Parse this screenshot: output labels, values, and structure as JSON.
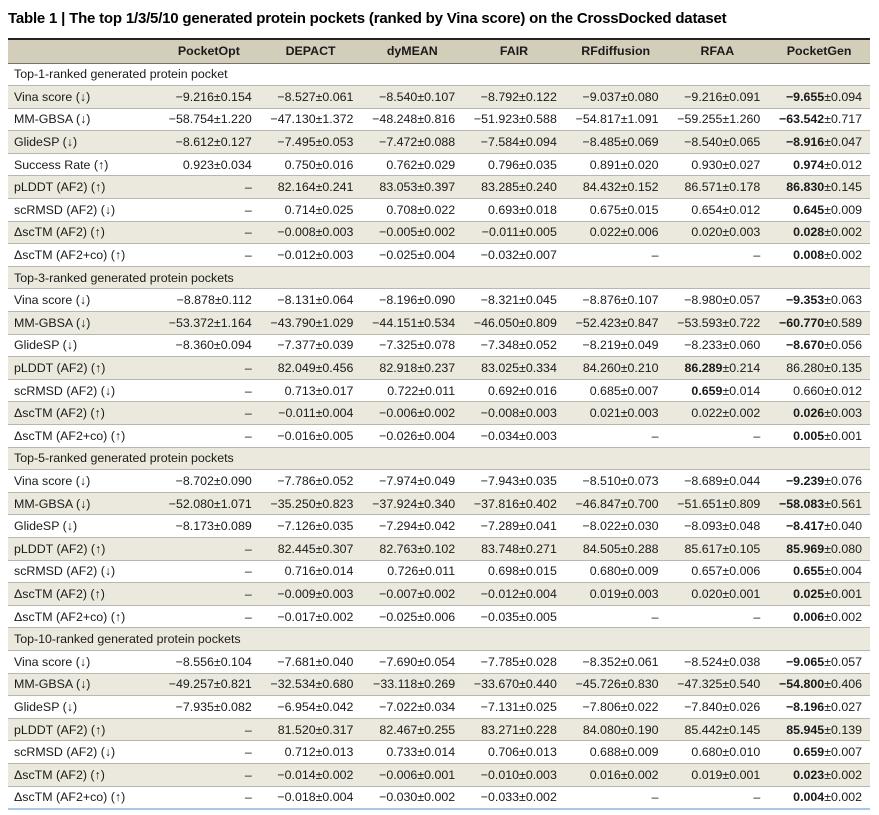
{
  "title": "Table 1 | The top 1/3/5/10 generated protein pockets (ranked by Vina score) on the CrossDocked dataset",
  "colors": {
    "header_bg": "#d2ceba",
    "stripe_bg": "#ebe9dd",
    "row_rule": "#b8b7ae",
    "top_rule": "#222222",
    "header_rule": "#73736b",
    "bottom_rule": "#a9c6e2",
    "text": "#1a1a1a"
  },
  "table": {
    "columns": [
      "",
      "PocketOpt",
      "DEPACT",
      "dyMEAN",
      "FAIR",
      "RFdiffusion",
      "RFAA",
      "PocketGen"
    ],
    "sections": [
      {
        "header": "Top-1-ranked generated protein pocket",
        "rows": [
          {
            "metric": "Vina score (↓)",
            "values": [
              "−9.216±0.154",
              "−8.527±0.061",
              "−8.540±0.107",
              "−8.792±0.122",
              "−9.037±0.080",
              "−9.216±0.091",
              "−9.655±0.094"
            ],
            "bold": [
              6
            ]
          },
          {
            "metric": "MM-GBSA (↓)",
            "values": [
              "−58.754±1.220",
              "−47.130±1.372",
              "−48.248±0.816",
              "−51.923±0.588",
              "−54.817±1.091",
              "−59.255±1.260",
              "−63.542±0.717"
            ],
            "bold": [
              6
            ]
          },
          {
            "metric": "GlideSP (↓)",
            "values": [
              "−8.612±0.127",
              "−7.495±0.053",
              "−7.472±0.088",
              "−7.584±0.094",
              "−8.485±0.069",
              "−8.540±0.065",
              "−8.916±0.047"
            ],
            "bold": [
              6
            ]
          },
          {
            "metric": "Success Rate (↑)",
            "values": [
              "0.923±0.034",
              "0.750±0.016",
              "0.762±0.029",
              "0.796±0.035",
              "0.891±0.020",
              "0.930±0.027",
              "0.974±0.012"
            ],
            "bold": [
              6
            ]
          },
          {
            "metric": "pLDDT (AF2) (↑)",
            "values": [
              "–",
              "82.164±0.241",
              "83.053±0.397",
              "83.285±0.240",
              "84.432±0.152",
              "86.571±0.178",
              "86.830±0.145"
            ],
            "bold": [
              6
            ]
          },
          {
            "metric": "scRMSD (AF2) (↓)",
            "values": [
              "–",
              "0.714±0.025",
              "0.708±0.022",
              "0.693±0.018",
              "0.675±0.015",
              "0.654±0.012",
              "0.645±0.009"
            ],
            "bold": [
              6
            ]
          },
          {
            "metric": "ΔscTM (AF2) (↑)",
            "values": [
              "–",
              "−0.008±0.003",
              "−0.005±0.002",
              "−0.011±0.005",
              "0.022±0.006",
              "0.020±0.003",
              "0.028±0.002"
            ],
            "bold": [
              6
            ]
          },
          {
            "metric": "ΔscTM (AF2+co) (↑)",
            "values": [
              "–",
              "−0.012±0.003",
              "−0.025±0.004",
              "−0.032±0.007",
              "–",
              "–",
              "0.008±0.002"
            ],
            "bold": [
              6
            ]
          }
        ]
      },
      {
        "header": "Top-3-ranked generated protein pockets",
        "rows": [
          {
            "metric": "Vina score (↓)",
            "values": [
              "−8.878±0.112",
              "−8.131±0.064",
              "−8.196±0.090",
              "−8.321±0.045",
              "−8.876±0.107",
              "−8.980±0.057",
              "−9.353±0.063"
            ],
            "bold": [
              6
            ]
          },
          {
            "metric": "MM-GBSA (↓)",
            "values": [
              "−53.372±1.164",
              "−43.790±1.029",
              "−44.151±0.534",
              "−46.050±0.809",
              "−52.423±0.847",
              "−53.593±0.722",
              "−60.770±0.589"
            ],
            "bold": [
              6
            ]
          },
          {
            "metric": "GlideSP (↓)",
            "values": [
              "−8.360±0.094",
              "−7.377±0.039",
              "−7.325±0.078",
              "−7.348±0.052",
              "−8.219±0.049",
              "−8.233±0.060",
              "−8.670±0.056"
            ],
            "bold": [
              6
            ]
          },
          {
            "metric": "pLDDT (AF2) (↑)",
            "values": [
              "–",
              "82.049±0.456",
              "82.918±0.237",
              "83.025±0.334",
              "84.260±0.210",
              "86.289±0.214",
              "86.280±0.135"
            ],
            "bold": [
              5
            ]
          },
          {
            "metric": "scRMSD (AF2) (↓)",
            "values": [
              "–",
              "0.713±0.017",
              "0.722±0.011",
              "0.692±0.016",
              "0.685±0.007",
              "0.659±0.014",
              "0.660±0.012"
            ],
            "bold": [
              5
            ]
          },
          {
            "metric": "ΔscTM (AF2) (↑)",
            "values": [
              "–",
              "−0.011±0.004",
              "−0.006±0.002",
              "−0.008±0.003",
              "0.021±0.003",
              "0.022±0.002",
              "0.026±0.003"
            ],
            "bold": [
              6
            ]
          },
          {
            "metric": "ΔscTM (AF2+co) (↑)",
            "values": [
              "–",
              "−0.016±0.005",
              "−0.026±0.004",
              "−0.034±0.003",
              "–",
              "–",
              "0.005±0.001"
            ],
            "bold": [
              6
            ]
          }
        ]
      },
      {
        "header": "Top-5-ranked generated protein pockets",
        "rows": [
          {
            "metric": "Vina score (↓)",
            "values": [
              "−8.702±0.090",
              "−7.786±0.052",
              "−7.974±0.049",
              "−7.943±0.035",
              "−8.510±0.073",
              "−8.689±0.044",
              "−9.239±0.076"
            ],
            "bold": [
              6
            ]
          },
          {
            "metric": "MM-GBSA (↓)",
            "values": [
              "−52.080±1.071",
              "−35.250±0.823",
              "−37.924±0.340",
              "−37.816±0.402",
              "−46.847±0.700",
              "−51.651±0.809",
              "−58.083±0.561"
            ],
            "bold": [
              6
            ]
          },
          {
            "metric": "GlideSP (↓)",
            "values": [
              "−8.173±0.089",
              "−7.126±0.035",
              "−7.294±0.042",
              "−7.289±0.041",
              "−8.022±0.030",
              "−8.093±0.048",
              "−8.417±0.040"
            ],
            "bold": [
              6
            ]
          },
          {
            "metric": "pLDDT (AF2) (↑)",
            "values": [
              "–",
              "82.445±0.307",
              "82.763±0.102",
              "83.748±0.271",
              "84.505±0.288",
              "85.617±0.105",
              "85.969±0.080"
            ],
            "bold": [
              6
            ]
          },
          {
            "metric": "scRMSD (AF2) (↓)",
            "values": [
              "–",
              "0.716±0.014",
              "0.726±0.011",
              "0.698±0.015",
              "0.680±0.009",
              "0.657±0.006",
              "0.655±0.004"
            ],
            "bold": [
              6
            ]
          },
          {
            "metric": "ΔscTM (AF2) (↑)",
            "values": [
              "–",
              "−0.009±0.003",
              "−0.007±0.002",
              "−0.012±0.004",
              "0.019±0.003",
              "0.020±0.001",
              "0.025±0.001"
            ],
            "bold": [
              6
            ]
          },
          {
            "metric": "ΔscTM (AF2+co) (↑)",
            "values": [
              "–",
              "−0.017±0.002",
              "−0.025±0.006",
              "−0.035±0.005",
              "–",
              "–",
              "0.006±0.002"
            ],
            "bold": [
              6
            ]
          }
        ]
      },
      {
        "header": "Top-10-ranked generated protein pockets",
        "rows": [
          {
            "metric": "Vina score (↓)",
            "values": [
              "−8.556±0.104",
              "−7.681±0.040",
              "−7.690±0.054",
              "−7.785±0.028",
              "−8.352±0.061",
              "−8.524±0.038",
              "−9.065±0.057"
            ],
            "bold": [
              6
            ]
          },
          {
            "metric": "MM-GBSA (↓)",
            "values": [
              "−49.257±0.821",
              "−32.534±0.680",
              "−33.118±0.269",
              "−33.670±0.440",
              "−45.726±0.830",
              "−47.325±0.540",
              "−54.800±0.406"
            ],
            "bold": [
              6
            ]
          },
          {
            "metric": "GlideSP (↓)",
            "values": [
              "−7.935±0.082",
              "−6.954±0.042",
              "−7.022±0.034",
              "−7.131±0.025",
              "−7.806±0.022",
              "−7.840±0.026",
              "−8.196±0.027"
            ],
            "bold": [
              6
            ]
          },
          {
            "metric": "pLDDT (AF2) (↑)",
            "values": [
              "–",
              "81.520±0.317",
              "82.467±0.255",
              "83.271±0.228",
              "84.080±0.190",
              "85.442±0.145",
              "85.945±0.139"
            ],
            "bold": [
              6
            ]
          },
          {
            "metric": "scRMSD (AF2) (↓)",
            "values": [
              "–",
              "0.712±0.013",
              "0.733±0.014",
              "0.706±0.013",
              "0.688±0.009",
              "0.680±0.010",
              "0.659±0.007"
            ],
            "bold": [
              6
            ]
          },
          {
            "metric": "ΔscTM (AF2) (↑)",
            "values": [
              "–",
              "−0.014±0.002",
              "−0.006±0.001",
              "−0.010±0.003",
              "0.016±0.002",
              "0.019±0.001",
              "0.023±0.002"
            ],
            "bold": [
              6
            ]
          },
          {
            "metric": "ΔscTM (AF2+co) (↑)",
            "values": [
              "–",
              "−0.018±0.004",
              "−0.030±0.002",
              "−0.033±0.002",
              "–",
              "–",
              "0.004±0.002"
            ],
            "bold": [
              6
            ]
          }
        ]
      }
    ]
  }
}
